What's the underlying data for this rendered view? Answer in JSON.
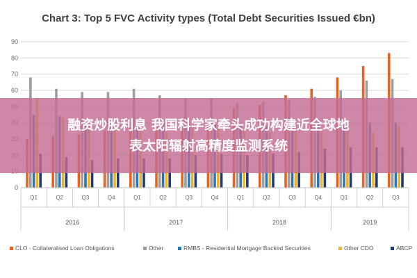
{
  "chart_data": {
    "type": "bar",
    "title": "Chart 3: Top 5 FVC Activity types (Total Debt Securities Issued €bn)",
    "ylim": [
      0,
      90
    ],
    "yticks": [
      0,
      10,
      20,
      30,
      40,
      50,
      60,
      70,
      80,
      90
    ],
    "categories": [
      "Q1",
      "Q2",
      "Q3",
      "Q4",
      "Q1",
      "Q2",
      "Q3",
      "Q4",
      "Q1",
      "Q2",
      "Q3",
      "Q4",
      "Q1",
      "Q2",
      "Q3"
    ],
    "years": [
      {
        "label": "2016",
        "start": 0,
        "end": 3
      },
      {
        "label": "2017",
        "start": 4,
        "end": 7
      },
      {
        "label": "2018",
        "start": 8,
        "end": 11
      },
      {
        "label": "2019",
        "start": 12,
        "end": 14
      }
    ],
    "grid": true,
    "legend_position": "bottom",
    "series": [
      {
        "name": "CLO - Collateralised Loan Obligations",
        "color": "#e8641e",
        "values": [
          30,
          32,
          33,
          35,
          37,
          38,
          39,
          42,
          49,
          51,
          57,
          61,
          68,
          75,
          83
        ]
      },
      {
        "name": "Other",
        "color": "#9e9e9e",
        "values": [
          68,
          61,
          59,
          59,
          61,
          57,
          55,
          55,
          52,
          53,
          54,
          56,
          60,
          66,
          67
        ]
      },
      {
        "name": "RMBS - Residential Mortgage Backed Securities",
        "color": "#2e75b6",
        "values": [
          45,
          44,
          42,
          41,
          40,
          41,
          39,
          40,
          39,
          38,
          38,
          40,
          39,
          40,
          40
        ]
      },
      {
        "name": "Other CDO",
        "color": "#f0b323",
        "values": [
          55,
          43,
          40,
          38,
          38,
          37,
          37,
          37,
          36,
          34,
          35,
          35,
          35,
          34,
          38
        ]
      },
      {
        "name": "ABCP",
        "color": "#1f3b73",
        "values": [
          21,
          19,
          17,
          18,
          18,
          18,
          20,
          21,
          20,
          21,
          22,
          24,
          25,
          25,
          25
        ]
      }
    ]
  },
  "overlay": {
    "line1": "融资炒股利息 我国科学家牵头成功构建近全球地",
    "line2": "表太阳辐射高精度监测系统"
  }
}
